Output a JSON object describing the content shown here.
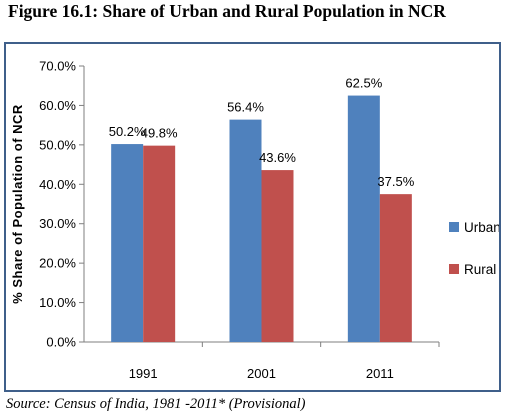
{
  "figure": {
    "title": "Figure 16.1: Share of Urban and Rural Population in NCR",
    "source": "Source: Census of India, 1981 -2011* (Provisional)"
  },
  "chart_data": {
    "type": "bar",
    "categories": [
      "1991",
      "2001",
      "2011"
    ],
    "series": [
      {
        "name": "Urban",
        "values": [
          50.2,
          56.4,
          62.5
        ],
        "color": "#4f81bd",
        "labels": [
          "50.2%",
          "56.4%",
          "62.5%"
        ]
      },
      {
        "name": "Rural",
        "values": [
          49.8,
          43.6,
          37.5
        ],
        "color": "#c0504d",
        "labels": [
          "49.8%",
          "43.6%",
          "37.5%"
        ]
      }
    ],
    "title": "",
    "xlabel": "",
    "ylabel": "% Share of Population of NCR",
    "ylim": [
      0,
      70
    ],
    "yticks": [
      0,
      10,
      20,
      30,
      40,
      50,
      60,
      70
    ],
    "ytick_labels": [
      "0.0%",
      "10.0%",
      "20.0%",
      "30.0%",
      "40.0%",
      "50.0%",
      "60.0%",
      "70.0%"
    ],
    "grid": false,
    "legend_position": "right"
  }
}
